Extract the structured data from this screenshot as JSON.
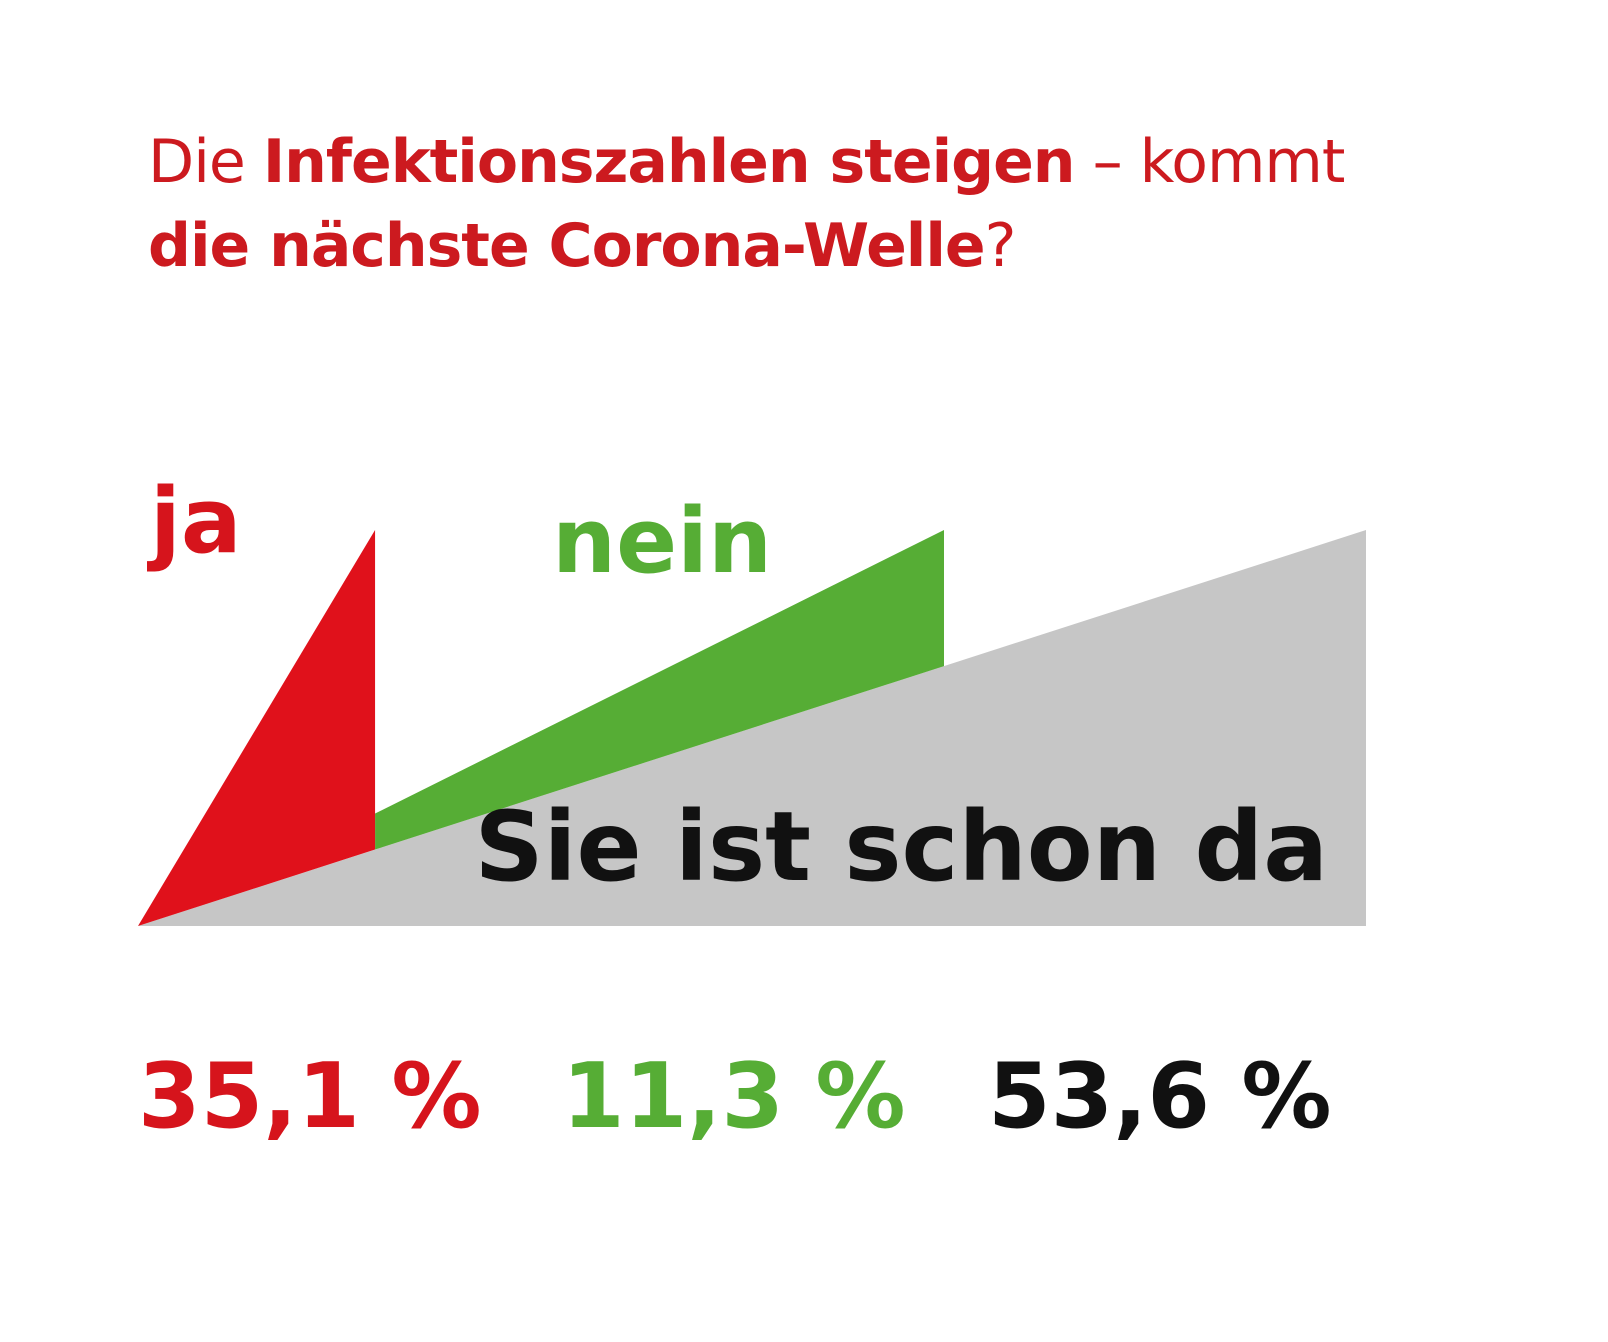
{
  "title": {
    "part1": "Die ",
    "part2": "Infektionszahlen steigen",
    "part3": " – kommt ",
    "part4": "die nächste Corona-Welle",
    "part5": "?"
  },
  "colors": {
    "title": "#cc1a1f",
    "background": "#ffffff"
  },
  "chart_data": {
    "type": "area",
    "title": "Die Infektionszahlen steigen – kommt die nächste Corona-Welle?",
    "categories": [
      "ja",
      "nein",
      "Sie ist schon da"
    ],
    "values": [
      35.1,
      11.3,
      53.6
    ],
    "value_labels": [
      "35,1 %",
      "11,3 %",
      "53,6 %"
    ],
    "colors": [
      "#e0111b",
      "#56ad35",
      "#c6c6c6"
    ],
    "label_colors": [
      "#d6141c",
      "#56ad35",
      "#111111"
    ],
    "unit": "%",
    "grid": false
  }
}
